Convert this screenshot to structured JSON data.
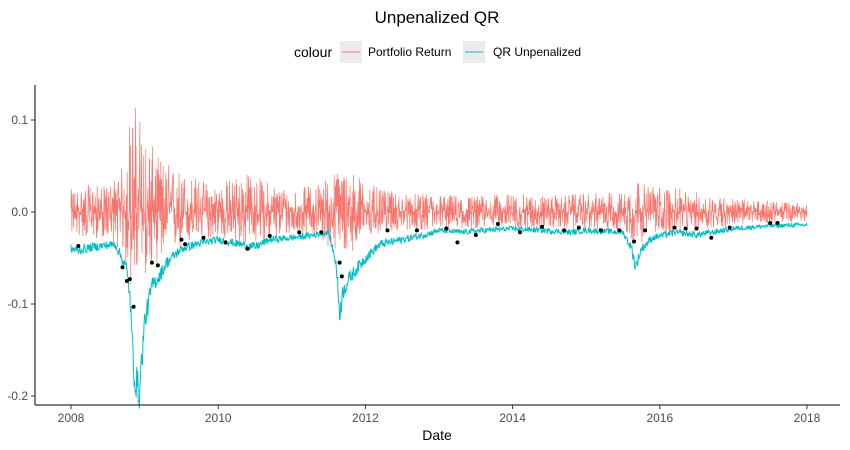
{
  "chart_data": {
    "type": "line",
    "title": "Unpenalized QR",
    "xlabel": "Date",
    "ylabel": "",
    "legend": {
      "title": "colour",
      "position": "top",
      "entries": [
        "Portfolio Return",
        "QR Unpenalized"
      ]
    },
    "xlim": [
      2008,
      2018
    ],
    "ylim": [
      -0.205,
      0.14
    ],
    "x_ticks": [
      2008,
      2010,
      2012,
      2014,
      2016,
      2018
    ],
    "x_tick_labels": [
      "2008",
      "2010",
      "2012",
      "2014",
      "2016",
      "2018"
    ],
    "y_ticks": [
      0.1,
      0.0,
      -0.1,
      -0.2
    ],
    "y_tick_labels": [
      "0.1",
      "0.0",
      "-0.1",
      "-0.2"
    ],
    "grid": false,
    "colors": {
      "portfolio": "#F8766D",
      "qr": "#00BFC4",
      "violations": "#000000"
    },
    "series": [
      {
        "name": "Portfolio Return",
        "style": "daily returns (noisy)",
        "x": [
          2008.0,
          2008.25,
          2008.5,
          2008.7,
          2008.8,
          2008.9,
          2009.0,
          2009.2,
          2009.5,
          2009.8,
          2010.0,
          2010.3,
          2010.5,
          2010.8,
          2011.0,
          2011.3,
          2011.6,
          2011.75,
          2011.9,
          2012.2,
          2012.5,
          2013.0,
          2013.5,
          2014.0,
          2014.5,
          2015.0,
          2015.5,
          2015.65,
          2015.8,
          2016.1,
          2016.5,
          2017.0,
          2017.5,
          2018.0
        ],
        "min": [
          -0.025,
          -0.03,
          -0.028,
          -0.045,
          -0.085,
          -0.075,
          -0.07,
          -0.055,
          -0.04,
          -0.03,
          -0.028,
          -0.04,
          -0.035,
          -0.03,
          -0.025,
          -0.025,
          -0.045,
          -0.05,
          -0.035,
          -0.025,
          -0.02,
          -0.02,
          -0.018,
          -0.018,
          -0.018,
          -0.02,
          -0.02,
          -0.04,
          -0.03,
          -0.03,
          -0.022,
          -0.015,
          -0.012,
          -0.01
        ],
        "max": [
          0.025,
          0.03,
          0.028,
          0.05,
          0.105,
          0.125,
          0.085,
          0.06,
          0.045,
          0.035,
          0.03,
          0.045,
          0.04,
          0.03,
          0.025,
          0.03,
          0.045,
          0.05,
          0.04,
          0.025,
          0.02,
          0.02,
          0.018,
          0.02,
          0.018,
          0.02,
          0.022,
          0.04,
          0.03,
          0.028,
          0.022,
          0.015,
          0.012,
          0.01
        ]
      },
      {
        "name": "QR Unpenalized",
        "x": [
          2008.0,
          2008.1,
          2008.3,
          2008.6,
          2008.75,
          2008.8,
          2008.85,
          2008.9,
          2008.93,
          2009.0,
          2009.1,
          2009.2,
          2009.3,
          2009.5,
          2009.7,
          2010.0,
          2010.3,
          2010.5,
          2010.7,
          2011.0,
          2011.3,
          2011.5,
          2011.6,
          2011.65,
          2011.7,
          2011.8,
          2012.0,
          2012.2,
          2012.5,
          2012.8,
          2013.0,
          2013.3,
          2013.6,
          2014.0,
          2014.4,
          2014.8,
          2015.0,
          2015.5,
          2015.62,
          2015.67,
          2015.75,
          2015.9,
          2016.2,
          2016.5,
          2017.0,
          2017.5,
          2018.0
        ],
        "y": [
          -0.04,
          -0.042,
          -0.038,
          -0.035,
          -0.06,
          -0.09,
          -0.17,
          -0.19,
          -0.195,
          -0.12,
          -0.08,
          -0.07,
          -0.055,
          -0.04,
          -0.035,
          -0.03,
          -0.035,
          -0.038,
          -0.03,
          -0.028,
          -0.025,
          -0.022,
          -0.055,
          -0.11,
          -0.085,
          -0.07,
          -0.05,
          -0.035,
          -0.03,
          -0.025,
          -0.02,
          -0.022,
          -0.02,
          -0.018,
          -0.02,
          -0.022,
          -0.02,
          -0.022,
          -0.04,
          -0.06,
          -0.04,
          -0.028,
          -0.022,
          -0.025,
          -0.018,
          -0.015,
          -0.014
        ]
      }
    ],
    "violations": {
      "name": "points",
      "x": [
        2008.1,
        2008.7,
        2008.76,
        2008.8,
        2008.85,
        2009.1,
        2009.18,
        2009.5,
        2009.55,
        2009.8,
        2010.1,
        2010.4,
        2010.7,
        2011.1,
        2011.4,
        2011.65,
        2011.68,
        2012.3,
        2012.7,
        2013.1,
        2013.25,
        2013.5,
        2013.8,
        2014.1,
        2014.4,
        2014.7,
        2014.9,
        2015.2,
        2015.45,
        2015.65,
        2015.8,
        2016.2,
        2016.35,
        2016.5,
        2016.7,
        2016.95,
        2017.5,
        2017.6
      ],
      "y": [
        -0.037,
        -0.06,
        -0.075,
        -0.073,
        -0.103,
        -0.055,
        -0.058,
        -0.03,
        -0.035,
        -0.028,
        -0.033,
        -0.04,
        -0.026,
        -0.022,
        -0.022,
        -0.055,
        -0.07,
        -0.02,
        -0.02,
        -0.018,
        -0.033,
        -0.025,
        -0.013,
        -0.022,
        -0.016,
        -0.02,
        -0.017,
        -0.02,
        -0.02,
        -0.032,
        -0.02,
        -0.017,
        -0.018,
        -0.018,
        -0.028,
        -0.017,
        -0.012,
        -0.012
      ]
    }
  }
}
